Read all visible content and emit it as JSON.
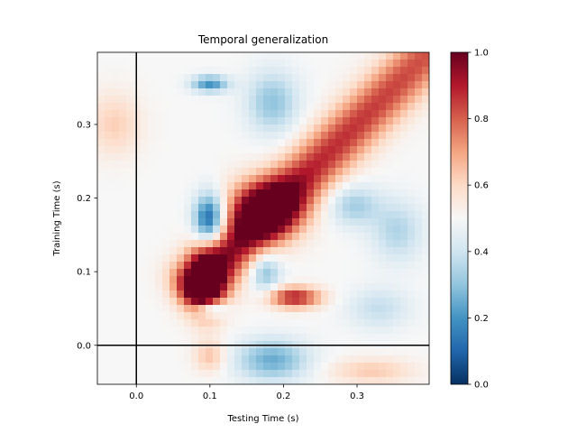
{
  "chart_data": [
    {
      "type": "heatmap",
      "title": "Temporal generalization",
      "xlabel": "Testing Time (s)",
      "ylabel": "Training Time (s)",
      "xlim": [
        -0.053,
        0.398
      ],
      "ylim": [
        -0.053,
        0.398
      ],
      "xticks": [
        0.0,
        0.1,
        0.2,
        0.3
      ],
      "yticks": [
        0.0,
        0.1,
        0.2,
        0.3
      ],
      "xtick_labels": [
        "0.0",
        "0.1",
        "0.2",
        "0.3"
      ],
      "ytick_labels": [
        "0.0",
        "0.1",
        "0.2",
        "0.3"
      ],
      "colormap": "RdBu_r",
      "vmin": 0.0,
      "vmax": 1.0,
      "reference_lines": {
        "x": 0.0,
        "y": 0.0,
        "color": "#000000"
      },
      "grid": false,
      "features": [
        {
          "kind": "diagonal-ridge",
          "from": [
            0.08,
            0.08
          ],
          "to": [
            0.395,
            0.395
          ],
          "value_start": 0.95,
          "value_end": 0.82,
          "width": 0.025
        },
        {
          "kind": "blob",
          "x": 0.095,
          "y": 0.085,
          "sx": 0.018,
          "sy": 0.03,
          "value": 0.98
        },
        {
          "kind": "blob",
          "x": 0.175,
          "y": 0.185,
          "sx": 0.035,
          "sy": 0.028,
          "value": 0.95
        },
        {
          "kind": "blob",
          "x": 0.215,
          "y": 0.065,
          "sx": 0.025,
          "sy": 0.01,
          "value": 0.9
        },
        {
          "kind": "blob",
          "x": 0.1,
          "y": 0.17,
          "sx": 0.015,
          "sy": 0.025,
          "value": 0.05
        },
        {
          "kind": "blob",
          "x": 0.1,
          "y": 0.05,
          "sx": 0.015,
          "sy": 0.008,
          "value": 0.15
        },
        {
          "kind": "blob",
          "x": 0.175,
          "y": 0.1,
          "sx": 0.015,
          "sy": 0.02,
          "value": 0.28
        },
        {
          "kind": "blob",
          "x": 0.185,
          "y": -0.02,
          "sx": 0.035,
          "sy": 0.02,
          "value": 0.25
        },
        {
          "kind": "blob",
          "x": 0.1,
          "y": 0.355,
          "sx": 0.018,
          "sy": 0.008,
          "value": 0.2
        },
        {
          "kind": "blob",
          "x": 0.185,
          "y": 0.33,
          "sx": 0.025,
          "sy": 0.03,
          "value": 0.3
        },
        {
          "kind": "blob",
          "x": 0.295,
          "y": 0.19,
          "sx": 0.025,
          "sy": 0.02,
          "value": 0.33
        },
        {
          "kind": "blob",
          "x": 0.355,
          "y": 0.155,
          "sx": 0.025,
          "sy": 0.03,
          "value": 0.35
        },
        {
          "kind": "blob",
          "x": 0.33,
          "y": 0.05,
          "sx": 0.03,
          "sy": 0.02,
          "value": 0.38
        },
        {
          "kind": "blob",
          "x": -0.03,
          "y": 0.3,
          "sx": 0.025,
          "sy": 0.03,
          "value": 0.62
        },
        {
          "kind": "blob",
          "x": 0.1,
          "y": -0.015,
          "sx": 0.015,
          "sy": 0.015,
          "value": 0.65
        },
        {
          "kind": "blob",
          "x": 0.32,
          "y": -0.035,
          "sx": 0.04,
          "sy": 0.012,
          "value": 0.63
        }
      ]
    },
    {
      "type": "colorbar",
      "ticks": [
        0.0,
        0.2,
        0.4,
        0.6,
        0.8,
        1.0
      ],
      "tick_labels": [
        "0.0",
        "0.2",
        "0.4",
        "0.6",
        "0.8",
        "1.0"
      ],
      "colormap": "RdBu_r",
      "colors": [
        "#053061",
        "#2166ac",
        "#4393c3",
        "#92c5de",
        "#d1e5f0",
        "#f7f7f7",
        "#fddbc7",
        "#f4a582",
        "#d6604d",
        "#b2182b",
        "#67001f"
      ]
    }
  ]
}
